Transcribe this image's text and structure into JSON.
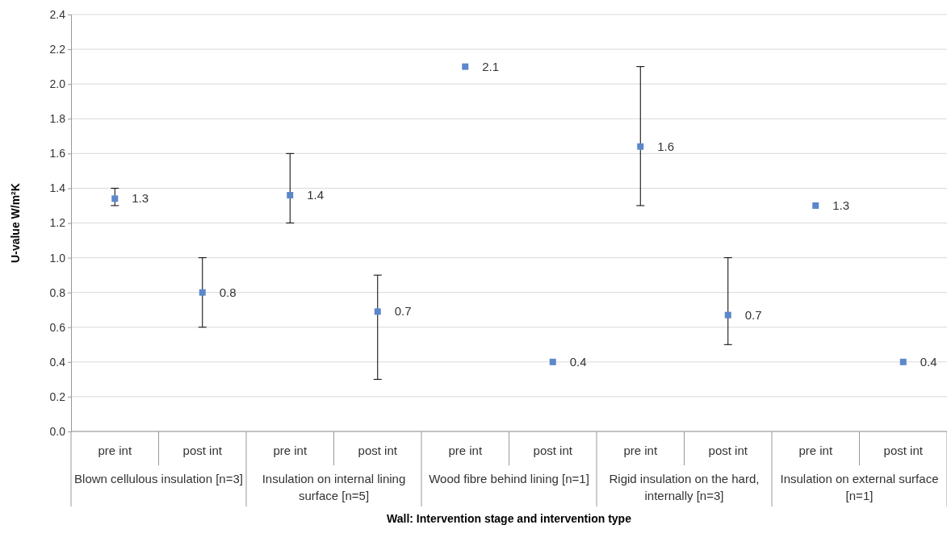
{
  "chart_data": {
    "type": "scatter",
    "ylabel": "U-value W/m²K",
    "xlabel": "Wall: Intervention stage and intervention type",
    "categories": [
      "pre int",
      "post int",
      "pre int",
      "post int",
      "pre int",
      "post int",
      "pre int",
      "post int",
      "pre int",
      "post int"
    ],
    "annotations": [
      "Blown cellulous  insulation [n=3]",
      "Insulation on internal lining surface [n=5]",
      "Wood fibre behind lining [n=1]",
      "Rigid insulation on the hard, internally [n=3]",
      "Insulation on external surface [n=1]"
    ],
    "series": [
      {
        "color": "#5b87cc",
        "values": [
          1.34,
          0.8,
          1.36,
          0.69,
          2.1,
          0.4,
          1.64,
          0.67,
          1.3,
          0.4
        ],
        "errors": [
          [
            1.3,
            1.4
          ],
          [
            0.6,
            1.0
          ],
          [
            1.2,
            1.6
          ],
          [
            0.3,
            0.9
          ],
          null,
          null,
          [
            1.3,
            2.1
          ],
          [
            0.5,
            1.0
          ],
          null,
          null
        ],
        "value_labels": [
          "1.3",
          "0.8",
          "1.4",
          "0.7",
          "2.1",
          "0.4",
          "1.6",
          "0.7",
          "1.3",
          "0.4"
        ]
      }
    ],
    "ylim": [
      0,
      2.4
    ],
    "yticks": [
      {
        "value": 0,
        "label": "0.0"
      },
      {
        "value": 0.2,
        "label": "0.2"
      },
      {
        "value": 0.4,
        "label": "0.4"
      },
      {
        "value": 0.6,
        "label": "0.6"
      },
      {
        "value": 0.8,
        "label": "0.8"
      },
      {
        "value": 1,
        "label": "1.0"
      },
      {
        "value": 1.2,
        "label": "1.2"
      },
      {
        "value": 1.4,
        "label": "1.4"
      },
      {
        "value": 1.6,
        "label": "1.6"
      },
      {
        "value": 1.8,
        "label": "1.8"
      },
      {
        "value": 2,
        "label": "2.0"
      },
      {
        "value": 2.2,
        "label": "2.2"
      },
      {
        "value": 2.4,
        "label": "2.4"
      }
    ],
    "grid": "y",
    "marker": "square"
  }
}
